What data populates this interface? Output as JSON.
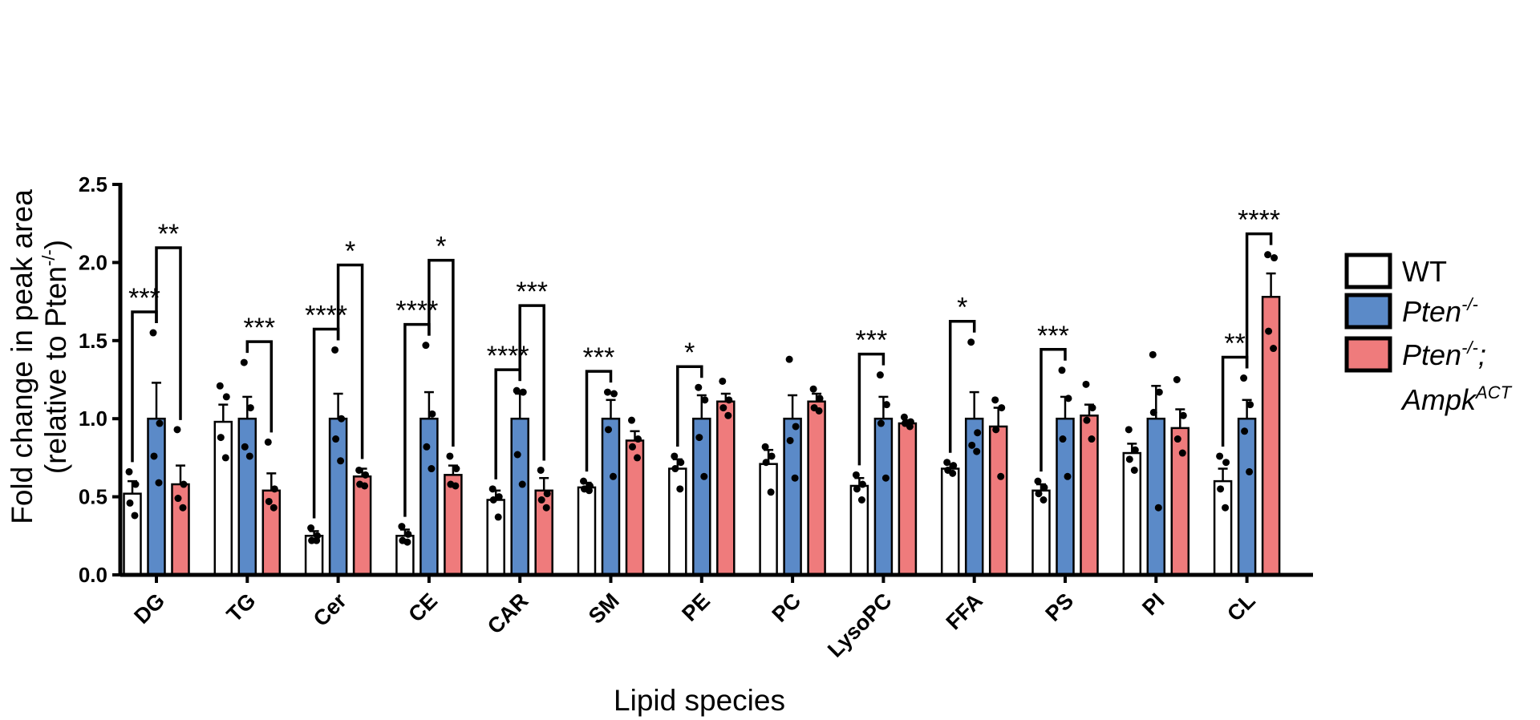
{
  "chart_data": {
    "type": "bar",
    "xlabel": "Lipid species",
    "ylabel_line1": "Fold change in peak area",
    "ylabel_line2": "(relative to Pten",
    "ylabel_sup": "-/-",
    "ylabel_close": ")",
    "ylim": [
      0,
      2.5
    ],
    "yticks": [
      "0.0",
      "0.5",
      "1.0",
      "1.5",
      "2.0",
      "2.5"
    ],
    "categories": [
      "DG",
      "TG",
      "Cer",
      "CE",
      "CAR",
      "SM",
      "PE",
      "PC",
      "LysoPC",
      "FFA",
      "PS",
      "PI",
      "CL"
    ],
    "series": [
      {
        "name": "WT",
        "color": "#ffffff",
        "values": [
          0.52,
          0.98,
          0.25,
          0.25,
          0.48,
          0.56,
          0.68,
          0.71,
          0.57,
          0.68,
          0.54,
          0.78,
          0.6
        ],
        "errors": [
          0.08,
          0.11,
          0.03,
          0.04,
          0.06,
          0.03,
          0.06,
          0.09,
          0.05,
          0.03,
          0.04,
          0.06,
          0.08
        ],
        "points": [
          [
            0.66,
            0.58,
            0.46,
            0.38
          ],
          [
            1.21,
            1.14,
            0.88,
            0.75
          ],
          [
            0.3,
            0.25,
            0.22,
            0.22
          ],
          [
            0.31,
            0.26,
            0.22,
            0.21
          ],
          [
            0.55,
            0.5,
            0.48,
            0.37
          ],
          [
            0.6,
            0.57,
            0.55,
            0.54
          ],
          [
            0.76,
            0.72,
            0.68,
            0.55
          ],
          [
            0.82,
            0.76,
            0.72,
            0.53
          ],
          [
            0.64,
            0.58,
            0.55,
            0.48
          ],
          [
            0.72,
            0.7,
            0.67,
            0.65
          ],
          [
            0.6,
            0.56,
            0.52,
            0.48
          ],
          [
            0.93,
            0.8,
            0.74,
            0.67
          ],
          [
            0.76,
            0.72,
            0.55,
            0.43
          ]
        ]
      },
      {
        "name": "Pten",
        "name_sup": "-/-",
        "color": "#5b8ac8",
        "values": [
          1.0,
          1.0,
          1.0,
          1.0,
          1.0,
          1.0,
          1.0,
          1.0,
          1.0,
          1.0,
          1.0,
          1.0,
          1.0
        ],
        "errors": [
          0.23,
          0.14,
          0.16,
          0.17,
          0.16,
          0.12,
          0.15,
          0.15,
          0.14,
          0.17,
          0.14,
          0.21,
          0.12
        ],
        "points": [
          [
            1.55,
            0.97,
            0.76,
            0.59
          ],
          [
            1.36,
            1.07,
            0.82,
            0.76
          ],
          [
            1.44,
            1.0,
            0.87,
            0.73
          ],
          [
            1.47,
            1.03,
            0.82,
            0.68
          ],
          [
            1.18,
            1.17,
            0.77,
            0.58
          ],
          [
            1.17,
            1.16,
            0.93,
            0.63
          ],
          [
            1.2,
            1.12,
            0.88,
            0.63
          ],
          [
            1.38,
            0.95,
            0.86,
            0.62
          ],
          [
            1.28,
            1.09,
            0.97,
            0.62
          ],
          [
            1.49,
            0.91,
            0.83,
            0.79
          ],
          [
            1.31,
            1.13,
            0.87,
            0.63
          ],
          [
            1.41,
            1.17,
            1.04,
            0.43
          ],
          [
            1.26,
            1.09,
            0.92,
            0.66
          ]
        ]
      },
      {
        "name": "Pten",
        "name_sup": "-/-",
        "name_suffix": ";",
        "name_line2": "Ampk",
        "name_line2_sup": "ACT",
        "color": "#ef7b7c",
        "values": [
          0.58,
          0.54,
          0.63,
          0.64,
          0.54,
          0.86,
          1.11,
          1.11,
          0.97,
          0.95,
          1.02,
          0.94,
          1.78
        ],
        "errors": [
          0.12,
          0.11,
          0.05,
          0.06,
          0.08,
          0.06,
          0.05,
          0.05,
          0.02,
          0.12,
          0.07,
          0.12,
          0.15
        ],
        "points": [
          [
            0.93,
            0.58,
            0.49,
            0.43
          ],
          [
            0.85,
            0.55,
            0.47,
            0.43
          ],
          [
            0.67,
            0.64,
            0.58,
            0.57
          ],
          [
            0.76,
            0.68,
            0.58,
            0.57
          ],
          [
            0.67,
            0.52,
            0.48,
            0.43
          ],
          [
            0.99,
            0.87,
            0.82,
            0.75
          ],
          [
            1.24,
            1.12,
            1.07,
            1.02
          ],
          [
            1.19,
            1.13,
            1.07,
            1.05
          ],
          [
            1.01,
            0.98,
            0.97,
            0.95
          ],
          [
            1.12,
            1.07,
            0.93,
            0.63
          ],
          [
            1.22,
            1.07,
            0.99,
            0.87
          ],
          [
            1.25,
            1.02,
            0.87,
            0.78
          ],
          [
            2.05,
            2.03,
            1.56,
            1.45
          ]
        ]
      }
    ],
    "brackets": [
      {
        "cat": 0,
        "from": 0,
        "to": 1,
        "label": "***"
      },
      {
        "cat": 0,
        "from": 1,
        "to": 2,
        "label": "**"
      },
      {
        "cat": 1,
        "from": 1,
        "to": 2,
        "label": "***"
      },
      {
        "cat": 2,
        "from": 0,
        "to": 1,
        "label": "****"
      },
      {
        "cat": 2,
        "from": 1,
        "to": 2,
        "label": "*"
      },
      {
        "cat": 3,
        "from": 0,
        "to": 1,
        "label": "****"
      },
      {
        "cat": 3,
        "from": 1,
        "to": 2,
        "label": "*"
      },
      {
        "cat": 4,
        "from": 0,
        "to": 1,
        "label": "****"
      },
      {
        "cat": 4,
        "from": 1,
        "to": 2,
        "label": "***"
      },
      {
        "cat": 5,
        "from": 0,
        "to": 1,
        "label": "***"
      },
      {
        "cat": 6,
        "from": 0,
        "to": 1,
        "label": "*"
      },
      {
        "cat": 8,
        "from": 0,
        "to": 1,
        "label": "***"
      },
      {
        "cat": 9,
        "from": 0,
        "to": 1,
        "label": "*"
      },
      {
        "cat": 10,
        "from": 0,
        "to": 1,
        "label": "***"
      },
      {
        "cat": 12,
        "from": 0,
        "to": 1,
        "label": "**"
      },
      {
        "cat": 12,
        "from": 1,
        "to": 2,
        "label": "****"
      }
    ],
    "legend_position": "right"
  }
}
